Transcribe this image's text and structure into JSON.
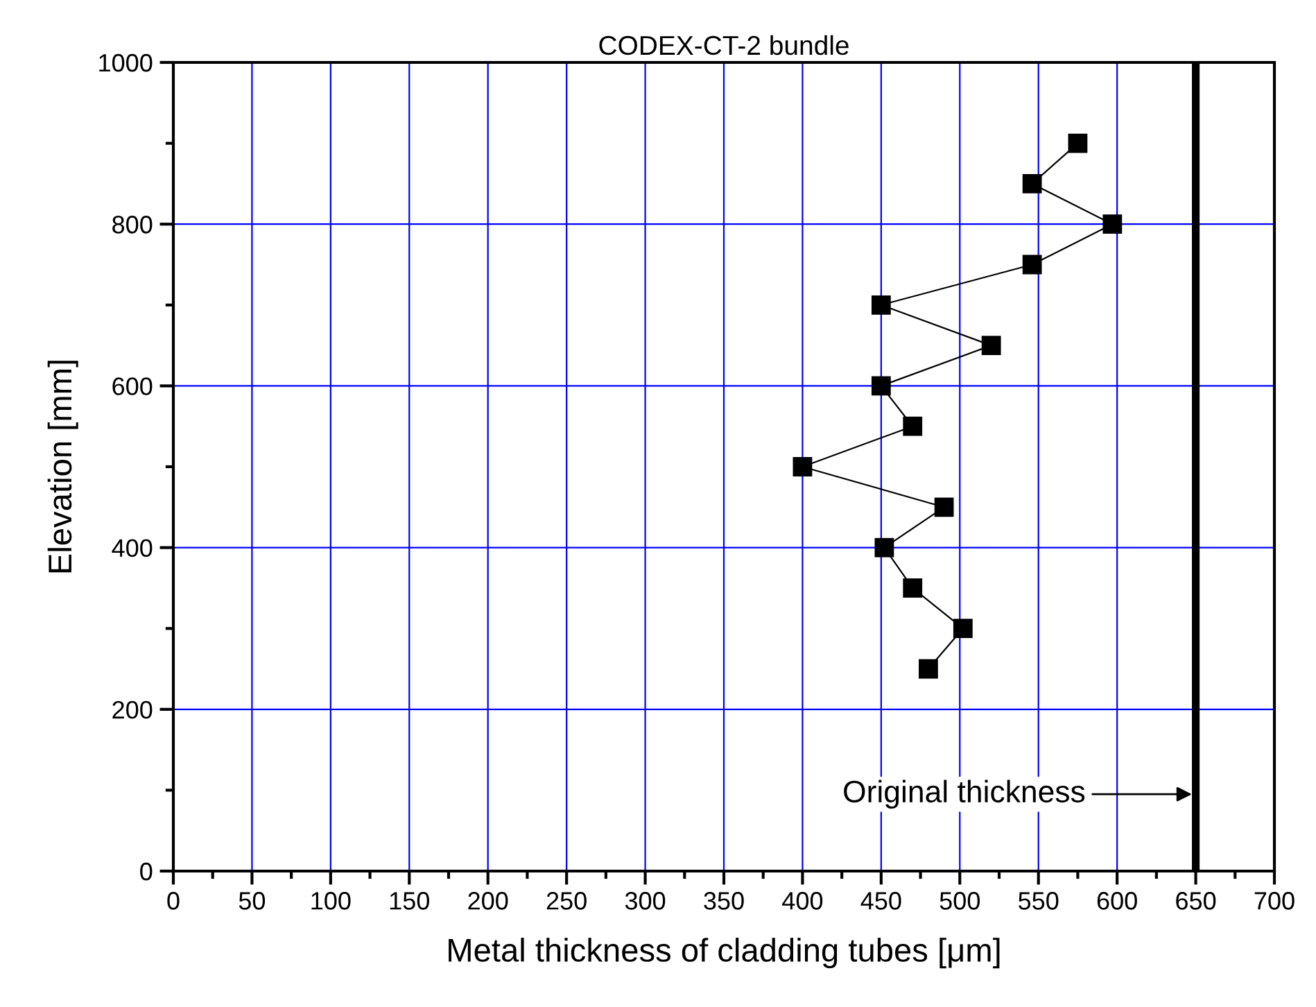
{
  "chart_data": {
    "type": "line",
    "title": "CODEX-CT-2 bundle",
    "xlabel": "Metal thickness of cladding tubes [μm]",
    "ylabel": "Elevation [mm]",
    "series": [
      {
        "color": "#000000",
        "x": [
          480,
          502,
          470,
          452,
          490,
          400,
          470,
          450,
          520,
          450,
          546,
          597,
          546,
          575
        ],
        "values": [
          250,
          300,
          350,
          400,
          450,
          500,
          550,
          600,
          650,
          700,
          750,
          800,
          850,
          900
        ]
      }
    ],
    "marker": "square",
    "line_style": "solid",
    "xlim": [
      0,
      700
    ],
    "xticks": [
      0,
      50,
      100,
      150,
      200,
      250,
      300,
      350,
      400,
      450,
      500,
      550,
      600,
      650,
      700
    ],
    "ylim": [
      0,
      1000
    ],
    "yticks": [
      0,
      200,
      400,
      600,
      800,
      1000
    ],
    "grid": true,
    "ref_lines": [
      {
        "axis": "x",
        "value": 650,
        "label": "Original thickness",
        "color": "#000000"
      }
    ]
  }
}
